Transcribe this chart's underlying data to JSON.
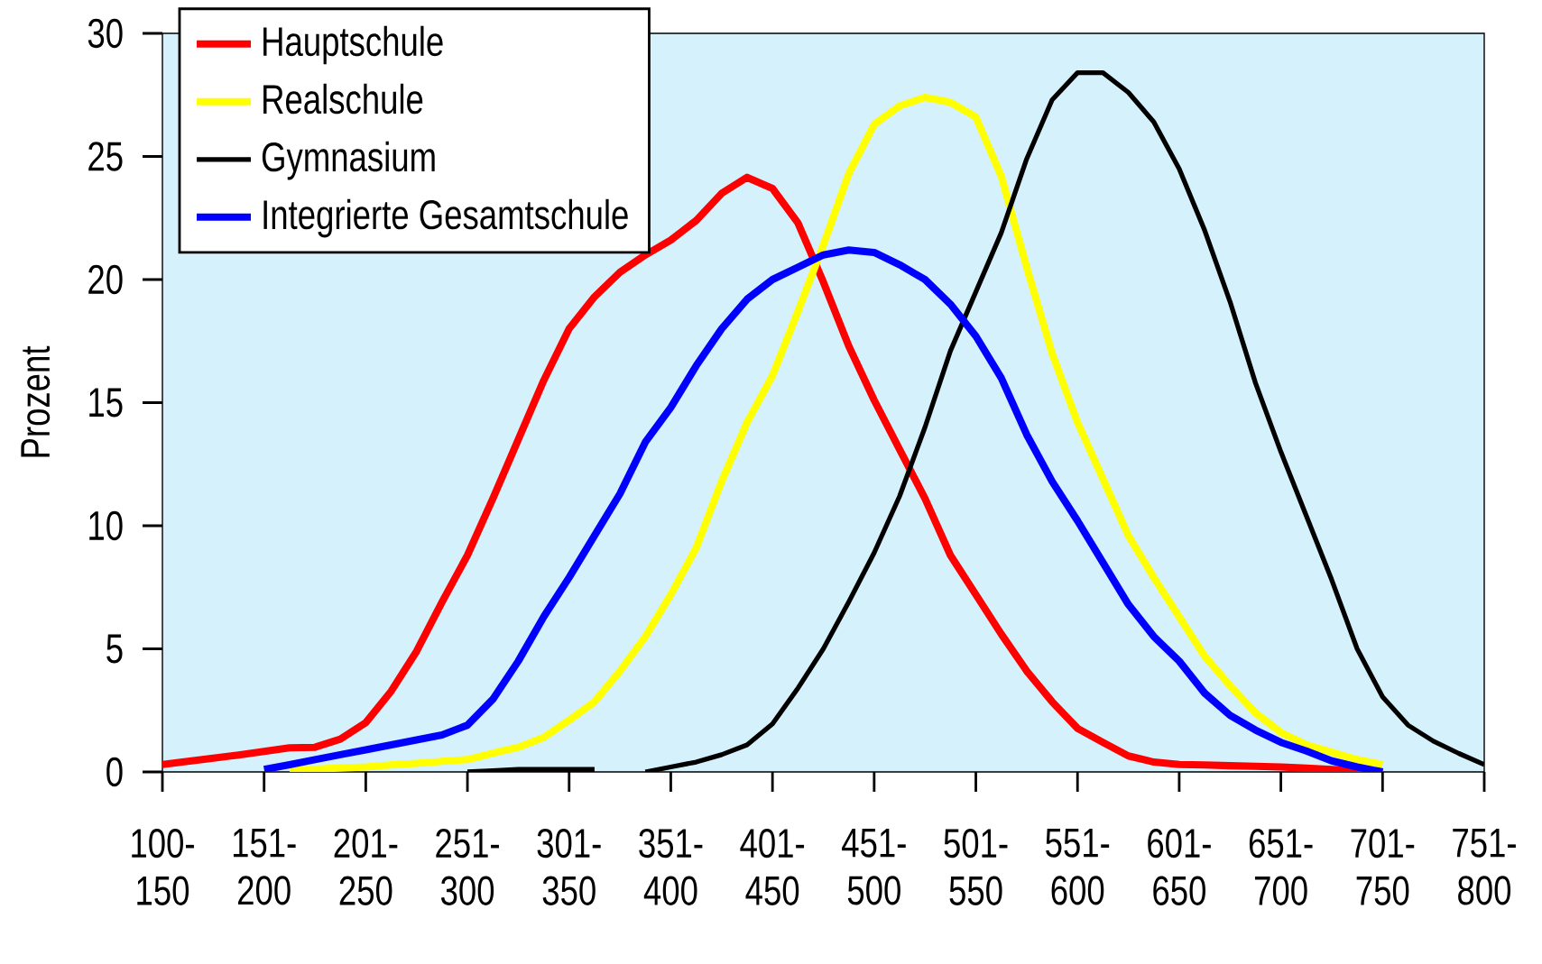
{
  "chart_data": {
    "type": "line",
    "ylabel": "Prozent",
    "categories": [
      "100-150",
      null,
      null,
      null,
      "151-200",
      null,
      null,
      null,
      "201-250",
      null,
      null,
      null,
      "251-300",
      null,
      null,
      null,
      "301-350",
      null,
      null,
      null,
      "351-400",
      null,
      null,
      null,
      "401-450",
      null,
      null,
      null,
      "451-500",
      null,
      null,
      null,
      "501-550",
      null,
      null,
      null,
      "551-600",
      null,
      null,
      null,
      "601-650",
      null,
      null,
      null,
      "651-700",
      null,
      null,
      null,
      "701-750",
      null,
      null,
      null,
      "751-800"
    ],
    "ylim": [
      0,
      30
    ],
    "yticks": [
      0,
      5,
      10,
      15,
      20,
      25,
      30
    ],
    "grid": false,
    "legend": "top left",
    "marker": "none",
    "line_style": "solid",
    "series": [
      {
        "name": "Hauptschule",
        "color": "#ff0000",
        "values": [
          0.3,
          0.43,
          0.56,
          0.69,
          0.83,
          0.98,
          1.0,
          1.33,
          2.0,
          3.28,
          4.9,
          6.9,
          8.8,
          11.1,
          13.5,
          15.9,
          18.0,
          19.3,
          20.3,
          21.0,
          21.6,
          22.4,
          23.5,
          24.15,
          23.7,
          22.3,
          19.9,
          17.3,
          15.1,
          13.1,
          11.1,
          8.8,
          7.2,
          5.6,
          4.1,
          2.85,
          1.77,
          1.2,
          0.65,
          0.4,
          0.3,
          0.28,
          0.25,
          0.23,
          0.2,
          0.15,
          0.1,
          0.05,
          0,
          null,
          null,
          null,
          null
        ]
      },
      {
        "name": "Realschule",
        "color": "#ffff00",
        "values": [
          null,
          null,
          null,
          null,
          null,
          0.07,
          0.11,
          0.16,
          0.2,
          0.28,
          0.35,
          0.43,
          0.5,
          0.76,
          1.0,
          1.4,
          2.1,
          2.85,
          4.1,
          5.5,
          7.2,
          9.1,
          11.8,
          14.2,
          16.1,
          18.7,
          21.4,
          24.3,
          26.3,
          27.05,
          27.4,
          27.2,
          26.6,
          24.2,
          20.5,
          17.0,
          14.2,
          11.9,
          9.6,
          7.9,
          6.3,
          4.7,
          3.5,
          2.4,
          1.6,
          1.1,
          0.8,
          0.5,
          0.3,
          null,
          null,
          null,
          null
        ]
      },
      {
        "name": "Gymnasium",
        "color": "#000000",
        "values": [
          null,
          null,
          null,
          null,
          null,
          null,
          null,
          null,
          null,
          null,
          null,
          null,
          0,
          0.05,
          0.1,
          0.1,
          0.1,
          0.1,
          null,
          0,
          0.2,
          0.4,
          0.7,
          1.1,
          1.95,
          3.4,
          5.0,
          6.9,
          8.9,
          11.2,
          14.0,
          17.1,
          19.5,
          21.9,
          24.9,
          27.3,
          28.4,
          28.4,
          27.6,
          26.4,
          24.5,
          22.0,
          19.1,
          15.8,
          13.0,
          10.4,
          7.8,
          5.0,
          3.05,
          1.9,
          1.25,
          0.75,
          0.3
        ]
      },
      {
        "name": "Integrierte Gesamtschule",
        "color": "#0000ff",
        "values": [
          null,
          null,
          null,
          null,
          0.1,
          0.29,
          0.5,
          0.7,
          0.9,
          1.1,
          1.3,
          1.5,
          1.9,
          2.95,
          4.5,
          6.3,
          7.9,
          9.6,
          11.3,
          13.4,
          14.8,
          16.5,
          18.0,
          19.2,
          20.0,
          20.5,
          21.0,
          21.2,
          21.1,
          20.6,
          20.0,
          19.0,
          17.7,
          16.0,
          13.7,
          11.8,
          10.2,
          8.5,
          6.8,
          5.5,
          4.5,
          3.2,
          2.3,
          1.7,
          1.2,
          0.85,
          0.45,
          0.2,
          0,
          null,
          null,
          null,
          null
        ]
      }
    ]
  }
}
